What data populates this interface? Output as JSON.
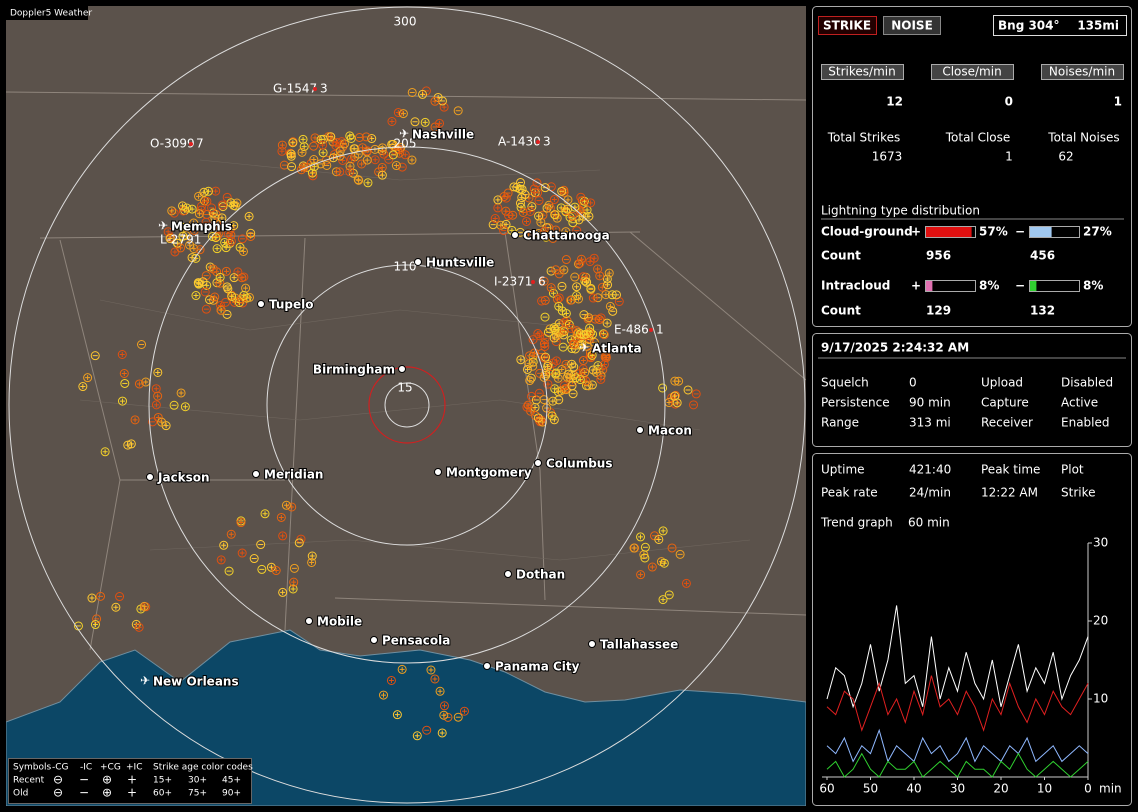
{
  "window_title": "Doppler5 Weather",
  "map": {
    "range_rings": [
      300,
      205,
      110,
      15
    ],
    "strike_tags": [
      {
        "id": "G-1547",
        "n": 3
      },
      {
        "id": "O-3099",
        "n": 7
      },
      {
        "id": "A-1430",
        "n": 3
      },
      {
        "id": "L-2791"
      },
      {
        "id": "I-2371",
        "n": 6
      },
      {
        "id": "E-486",
        "n": 1
      }
    ],
    "cities": [
      "Nashville",
      "Memphis",
      "Chattanooga",
      "Huntsville",
      "Tupelo",
      "Birmingham",
      "Atlanta",
      "Macon",
      "Jackson",
      "Meridian",
      "Montgomery",
      "Columbus",
      "Dothan",
      "Mobile",
      "Pensacola",
      "Panama City",
      "Tallahassee",
      "New Orleans"
    ],
    "legend": {
      "symbols_label": "Symbols",
      "columns": [
        "-CG",
        "-IC",
        "+CG",
        "+IC"
      ],
      "age_label": "Strike age color codes",
      "rows": [
        {
          "name": "Recent",
          "ages": [
            "15+",
            "30+",
            "45+"
          ]
        },
        {
          "name": "Old",
          "ages": [
            "60+",
            "75+",
            "90+"
          ]
        }
      ]
    }
  },
  "panel": {
    "mode_buttons": [
      "STRIKE",
      "NOISE"
    ],
    "bearing": "Bng 304°",
    "distance": "135mi",
    "rates": [
      {
        "label": "Strikes/min",
        "value": 12,
        "total_label": "Total Strikes",
        "total": 1673
      },
      {
        "label": "Close/min",
        "value": 0,
        "total_label": "Total Close",
        "total": 1
      },
      {
        "label": "Noises/min",
        "value": 1,
        "total_label": "Total Noises",
        "total": 62
      }
    ],
    "distribution": {
      "title": "Lightning type distribution",
      "count_label": "Count",
      "rows": [
        {
          "name": "Cloud-ground",
          "positive": {
            "sign": "+",
            "value": 57,
            "value_label": "57%",
            "count": 956
          },
          "negative": {
            "sign": "−",
            "value": 27,
            "value_label": "27%",
            "count": 456
          }
        },
        {
          "name": "Intracloud",
          "positive": {
            "sign": "+",
            "value": 8,
            "value_label": "8%",
            "count": 129
          },
          "negative": {
            "sign": "−",
            "value": 8,
            "value_label": "8%",
            "count": 132
          }
        }
      ]
    },
    "status": {
      "datetime": "9/17/2025 2:24:32 AM",
      "items": [
        {
          "label": "Squelch",
          "value": "0"
        },
        {
          "label": "Persistence",
          "value": "90 min"
        },
        {
          "label": "Range",
          "value": "313 mi"
        },
        {
          "label": "Upload",
          "value": "Disabled"
        },
        {
          "label": "Capture",
          "value": "Active"
        },
        {
          "label": "Receiver",
          "value": "Enabled"
        }
      ]
    },
    "stats": {
      "uptime_label": "Uptime",
      "uptime": "421:40",
      "peak_rate_label": "Peak rate",
      "peak_rate": "24/min",
      "peak_time_label": "Peak time",
      "peak_time": "12:22 AM",
      "plot_label": "Plot",
      "plot": "Strike"
    },
    "trend": {
      "label": "Trend graph",
      "window": "60 min",
      "ylim": [
        0,
        30
      ],
      "yticks": [
        10,
        20,
        30
      ],
      "xlim": [
        60,
        0
      ],
      "xticks": [
        60,
        50,
        40,
        30,
        20,
        10,
        0
      ],
      "x_unit": "min",
      "x": [
        60,
        58,
        56,
        54,
        52,
        50,
        48,
        46,
        44,
        42,
        40,
        38,
        36,
        34,
        32,
        30,
        28,
        26,
        24,
        22,
        20,
        18,
        16,
        14,
        12,
        10,
        8,
        6,
        4,
        2,
        0
      ],
      "series": [
        {
          "color": "#ffffff",
          "values": [
            10,
            14,
            13,
            9,
            12,
            17,
            11,
            15,
            22,
            12,
            13,
            9,
            18,
            10,
            14,
            11,
            16,
            12,
            10,
            15,
            9,
            13,
            17,
            11,
            14,
            12,
            16,
            10,
            13,
            15,
            18
          ]
        },
        {
          "color": "#e02020",
          "values": [
            9,
            8,
            11,
            10,
            6,
            9,
            12,
            8,
            10,
            7,
            11,
            8,
            13,
            9,
            10,
            8,
            11,
            9,
            6,
            10,
            8,
            12,
            9,
            7,
            10,
            8,
            11,
            9,
            8,
            10,
            12
          ]
        },
        {
          "color": "#8fb8ff",
          "values": [
            4,
            3,
            5,
            2,
            4,
            3,
            6,
            2,
            4,
            3,
            2,
            5,
            3,
            4,
            2,
            3,
            5,
            2,
            4,
            3,
            2,
            4,
            3,
            5,
            2,
            3,
            4,
            2,
            3,
            4,
            3
          ]
        },
        {
          "color": "#30d030",
          "values": [
            1,
            2,
            0,
            1,
            3,
            1,
            0,
            2,
            1,
            1,
            2,
            0,
            1,
            2,
            1,
            0,
            2,
            1,
            1,
            0,
            2,
            1,
            3,
            1,
            0,
            1,
            2,
            1,
            0,
            1,
            2
          ]
        }
      ]
    }
  }
}
